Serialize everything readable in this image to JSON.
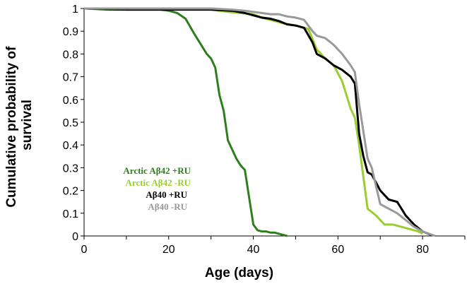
{
  "chart_data": {
    "type": "line",
    "title": "",
    "xlabel": "Age (days)",
    "ylabel": "Cumulative probability of survival",
    "ylabel_lines": [
      "Cumulative probability of",
      "survival"
    ],
    "xlim": [
      0,
      90
    ],
    "ylim": [
      0,
      1
    ],
    "xticks": [
      0,
      20,
      40,
      60,
      80
    ],
    "yticks": [
      0,
      0.1,
      0.2,
      0.3,
      0.4,
      0.5,
      0.6,
      0.7,
      0.8,
      0.9,
      1
    ],
    "grid": false,
    "legend_position": "bottom-left",
    "series": [
      {
        "name": "Arctic Aβ42 +RU",
        "color": "#2e7d1e",
        "x": [
          0,
          6,
          12,
          18,
          20,
          22,
          24,
          26,
          27,
          29,
          30,
          31,
          32,
          33,
          34,
          35,
          36,
          37,
          38,
          39,
          40,
          41,
          42,
          43,
          44,
          45,
          46,
          47,
          48
        ],
        "y": [
          1,
          0.995,
          0.995,
          0.995,
          0.99,
          0.98,
          0.955,
          0.89,
          0.86,
          0.8,
          0.78,
          0.74,
          0.62,
          0.55,
          0.42,
          0.38,
          0.34,
          0.31,
          0.29,
          0.17,
          0.05,
          0.025,
          0.02,
          0.02,
          0.015,
          0.015,
          0.01,
          0.005,
          0
        ]
      },
      {
        "name": "Arctic Aβ42 -RU",
        "color": "#9acd32",
        "x": [
          0,
          10,
          20,
          30,
          34,
          40,
          42,
          44,
          47,
          50,
          53,
          55,
          57,
          59,
          61,
          63,
          64,
          65,
          67,
          69,
          71,
          73,
          75,
          77,
          79,
          80
        ],
        "y": [
          1,
          1,
          1,
          0.995,
          0.985,
          0.975,
          0.96,
          0.95,
          0.935,
          0.925,
          0.91,
          0.82,
          0.78,
          0.75,
          0.68,
          0.56,
          0.52,
          0.4,
          0.12,
          0.09,
          0.05,
          0.05,
          0.04,
          0.03,
          0.02,
          0.01
        ]
      },
      {
        "name": "Aβ40 +RU",
        "color": "#000000",
        "x": [
          0,
          10,
          20,
          30,
          35,
          38,
          40,
          42,
          44,
          46,
          48,
          50,
          52,
          54,
          55,
          57,
          59,
          61,
          63,
          64,
          65,
          66,
          67,
          68,
          70,
          72,
          74,
          76,
          78,
          80,
          82
        ],
        "y": [
          1,
          0.995,
          0.995,
          0.995,
          0.99,
          0.98,
          0.97,
          0.96,
          0.955,
          0.945,
          0.93,
          0.925,
          0.915,
          0.85,
          0.8,
          0.78,
          0.75,
          0.73,
          0.7,
          0.67,
          0.45,
          0.35,
          0.28,
          0.27,
          0.2,
          0.16,
          0.15,
          0.09,
          0.05,
          0.02,
          0.005
        ]
      },
      {
        "name": "Aβ40 -RU",
        "color": "#999999",
        "x": [
          0,
          10,
          20,
          30,
          35,
          38,
          40,
          42,
          44,
          46,
          48,
          50,
          52,
          54,
          55,
          57,
          59,
          61,
          63,
          64,
          65,
          66,
          67,
          68,
          70,
          72,
          74,
          76,
          78,
          80,
          83
        ],
        "y": [
          1,
          1,
          1,
          1,
          0.995,
          0.99,
          0.985,
          0.98,
          0.975,
          0.975,
          0.965,
          0.96,
          0.95,
          0.9,
          0.88,
          0.87,
          0.84,
          0.8,
          0.75,
          0.72,
          0.58,
          0.46,
          0.34,
          0.3,
          0.14,
          0.12,
          0.1,
          0.07,
          0.04,
          0.02,
          0
        ]
      }
    ]
  }
}
